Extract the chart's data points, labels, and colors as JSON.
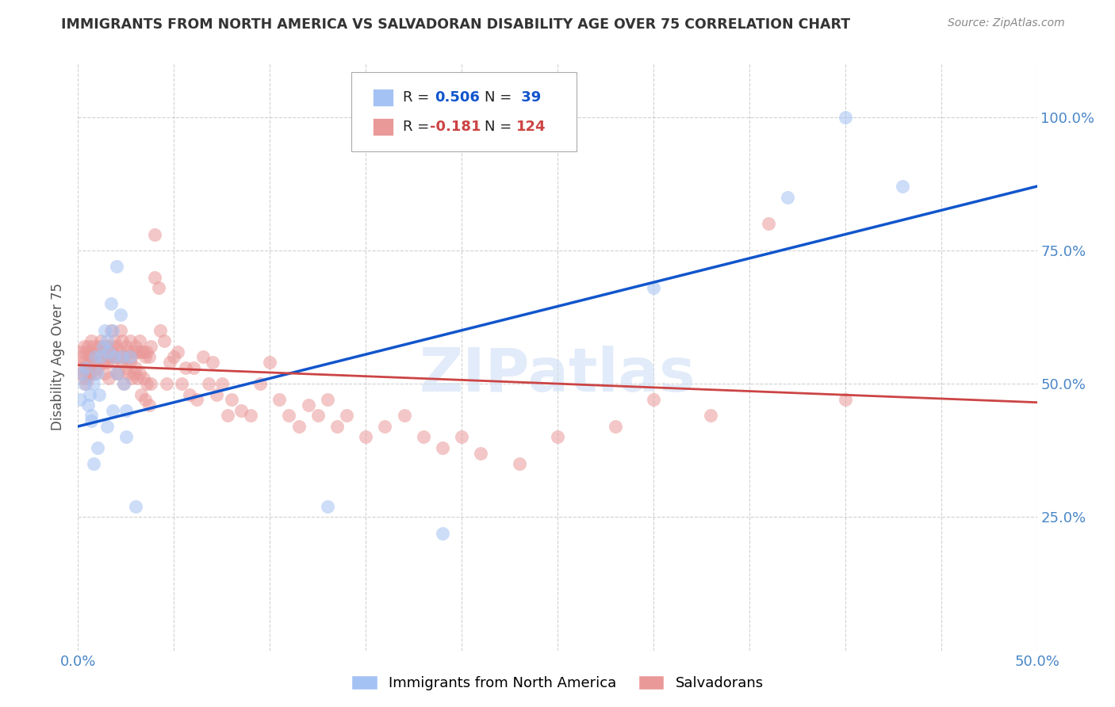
{
  "title": "IMMIGRANTS FROM NORTH AMERICA VS SALVADORAN DISABILITY AGE OVER 75 CORRELATION CHART",
  "source": "Source: ZipAtlas.com",
  "ylabel": "Disability Age Over 75",
  "x_min": 0.0,
  "x_max": 0.5,
  "y_min": 0.0,
  "y_max": 1.1,
  "blue_R": 0.506,
  "blue_N": 39,
  "pink_R": -0.181,
  "pink_N": 124,
  "blue_color": "#a4c2f4",
  "pink_color": "#ea9999",
  "blue_line_color": "#1155cc",
  "pink_line_color": "#cc4444",
  "legend_label_blue": "Immigrants from North America",
  "legend_label_pink": "Salvadorans",
  "watermark": "ZIPatlas",
  "blue_scatter": [
    [
      0.001,
      0.47
    ],
    [
      0.002,
      0.52
    ],
    [
      0.003,
      0.5
    ],
    [
      0.004,
      0.53
    ],
    [
      0.005,
      0.46
    ],
    [
      0.006,
      0.48
    ],
    [
      0.007,
      0.44
    ],
    [
      0.008,
      0.5
    ],
    [
      0.009,
      0.55
    ],
    [
      0.01,
      0.52
    ],
    [
      0.011,
      0.48
    ],
    [
      0.012,
      0.55
    ],
    [
      0.013,
      0.57
    ],
    [
      0.014,
      0.6
    ],
    [
      0.015,
      0.58
    ],
    [
      0.016,
      0.56
    ],
    [
      0.017,
      0.65
    ],
    [
      0.018,
      0.6
    ],
    [
      0.019,
      0.55
    ],
    [
      0.02,
      0.52
    ],
    [
      0.02,
      0.72
    ],
    [
      0.022,
      0.63
    ],
    [
      0.023,
      0.55
    ],
    [
      0.024,
      0.5
    ],
    [
      0.025,
      0.45
    ],
    [
      0.027,
      0.55
    ],
    [
      0.03,
      0.27
    ],
    [
      0.01,
      0.38
    ],
    [
      0.008,
      0.35
    ],
    [
      0.007,
      0.43
    ],
    [
      0.015,
      0.42
    ],
    [
      0.018,
      0.45
    ],
    [
      0.025,
      0.4
    ],
    [
      0.13,
      0.27
    ],
    [
      0.19,
      0.22
    ],
    [
      0.3,
      0.68
    ],
    [
      0.37,
      0.85
    ],
    [
      0.4,
      1.0
    ],
    [
      0.43,
      0.87
    ]
  ],
  "pink_scatter": [
    [
      0.001,
      0.53
    ],
    [
      0.001,
      0.56
    ],
    [
      0.002,
      0.55
    ],
    [
      0.002,
      0.52
    ],
    [
      0.003,
      0.57
    ],
    [
      0.003,
      0.54
    ],
    [
      0.003,
      0.51
    ],
    [
      0.004,
      0.56
    ],
    [
      0.004,
      0.53
    ],
    [
      0.004,
      0.5
    ],
    [
      0.005,
      0.57
    ],
    [
      0.005,
      0.54
    ],
    [
      0.005,
      0.51
    ],
    [
      0.006,
      0.56
    ],
    [
      0.006,
      0.52
    ],
    [
      0.006,
      0.55
    ],
    [
      0.007,
      0.58
    ],
    [
      0.007,
      0.55
    ],
    [
      0.007,
      0.52
    ],
    [
      0.008,
      0.57
    ],
    [
      0.008,
      0.54
    ],
    [
      0.009,
      0.55
    ],
    [
      0.009,
      0.52
    ],
    [
      0.01,
      0.56
    ],
    [
      0.01,
      0.53
    ],
    [
      0.011,
      0.57
    ],
    [
      0.011,
      0.54
    ],
    [
      0.012,
      0.56
    ],
    [
      0.012,
      0.58
    ],
    [
      0.013,
      0.57
    ],
    [
      0.013,
      0.54
    ],
    [
      0.014,
      0.56
    ],
    [
      0.014,
      0.52
    ],
    [
      0.015,
      0.57
    ],
    [
      0.015,
      0.54
    ],
    [
      0.016,
      0.55
    ],
    [
      0.016,
      0.51
    ],
    [
      0.017,
      0.6
    ],
    [
      0.017,
      0.56
    ],
    [
      0.018,
      0.57
    ],
    [
      0.018,
      0.54
    ],
    [
      0.019,
      0.58
    ],
    [
      0.019,
      0.55
    ],
    [
      0.02,
      0.57
    ],
    [
      0.02,
      0.52
    ],
    [
      0.021,
      0.55
    ],
    [
      0.021,
      0.52
    ],
    [
      0.022,
      0.6
    ],
    [
      0.022,
      0.56
    ],
    [
      0.023,
      0.58
    ],
    [
      0.023,
      0.54
    ],
    [
      0.024,
      0.55
    ],
    [
      0.024,
      0.5
    ],
    [
      0.025,
      0.57
    ],
    [
      0.025,
      0.53
    ],
    [
      0.026,
      0.56
    ],
    [
      0.026,
      0.52
    ],
    [
      0.027,
      0.58
    ],
    [
      0.027,
      0.54
    ],
    [
      0.028,
      0.55
    ],
    [
      0.028,
      0.51
    ],
    [
      0.029,
      0.56
    ],
    [
      0.029,
      0.52
    ],
    [
      0.03,
      0.57
    ],
    [
      0.03,
      0.53
    ],
    [
      0.031,
      0.56
    ],
    [
      0.031,
      0.51
    ],
    [
      0.032,
      0.58
    ],
    [
      0.032,
      0.52
    ],
    [
      0.033,
      0.56
    ],
    [
      0.033,
      0.48
    ],
    [
      0.034,
      0.56
    ],
    [
      0.034,
      0.51
    ],
    [
      0.035,
      0.55
    ],
    [
      0.035,
      0.47
    ],
    [
      0.036,
      0.56
    ],
    [
      0.036,
      0.5
    ],
    [
      0.037,
      0.55
    ],
    [
      0.037,
      0.46
    ],
    [
      0.038,
      0.57
    ],
    [
      0.038,
      0.5
    ],
    [
      0.04,
      0.78
    ],
    [
      0.04,
      0.7
    ],
    [
      0.042,
      0.68
    ],
    [
      0.043,
      0.6
    ],
    [
      0.045,
      0.58
    ],
    [
      0.046,
      0.5
    ],
    [
      0.048,
      0.54
    ],
    [
      0.05,
      0.55
    ],
    [
      0.052,
      0.56
    ],
    [
      0.054,
      0.5
    ],
    [
      0.056,
      0.53
    ],
    [
      0.058,
      0.48
    ],
    [
      0.06,
      0.53
    ],
    [
      0.062,
      0.47
    ],
    [
      0.065,
      0.55
    ],
    [
      0.068,
      0.5
    ],
    [
      0.07,
      0.54
    ],
    [
      0.072,
      0.48
    ],
    [
      0.075,
      0.5
    ],
    [
      0.078,
      0.44
    ],
    [
      0.08,
      0.47
    ],
    [
      0.085,
      0.45
    ],
    [
      0.09,
      0.44
    ],
    [
      0.095,
      0.5
    ],
    [
      0.1,
      0.54
    ],
    [
      0.105,
      0.47
    ],
    [
      0.11,
      0.44
    ],
    [
      0.115,
      0.42
    ],
    [
      0.12,
      0.46
    ],
    [
      0.125,
      0.44
    ],
    [
      0.13,
      0.47
    ],
    [
      0.135,
      0.42
    ],
    [
      0.14,
      0.44
    ],
    [
      0.15,
      0.4
    ],
    [
      0.16,
      0.42
    ],
    [
      0.17,
      0.44
    ],
    [
      0.18,
      0.4
    ],
    [
      0.19,
      0.38
    ],
    [
      0.2,
      0.4
    ],
    [
      0.21,
      0.37
    ],
    [
      0.23,
      0.35
    ],
    [
      0.25,
      0.4
    ],
    [
      0.28,
      0.42
    ],
    [
      0.3,
      0.47
    ],
    [
      0.33,
      0.44
    ],
    [
      0.36,
      0.8
    ],
    [
      0.4,
      0.47
    ]
  ],
  "blue_line": [
    [
      0.0,
      0.42
    ],
    [
      0.5,
      0.87
    ]
  ],
  "pink_line": [
    [
      0.0,
      0.535
    ],
    [
      0.5,
      0.465
    ]
  ]
}
